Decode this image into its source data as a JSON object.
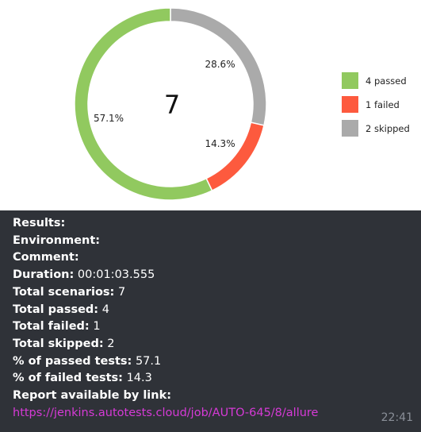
{
  "chart_data": {
    "type": "pie",
    "variant": "donut",
    "center_label": "7",
    "series": [
      {
        "name": "passed",
        "value": 4,
        "percent_label": "57.1%",
        "legend_label": "4 passed",
        "color": "#91c95f"
      },
      {
        "name": "failed",
        "value": 1,
        "percent_label": "14.3%",
        "legend_label": "1 failed",
        "color": "#fd5a3e"
      },
      {
        "name": "skipped",
        "value": 2,
        "percent_label": "28.6%",
        "legend_label": "2 skipped",
        "color": "#aaaaaa"
      }
    ],
    "legend_placement": "right"
  },
  "message": {
    "results_label": "Results:",
    "environment_label": "Environment:",
    "comment_label": "Comment:",
    "duration_label": "Duration:",
    "duration_value": "00:01:03.555",
    "total_scenarios_label": "Total scenarios:",
    "total_scenarios_value": "7",
    "total_passed_label": "Total passed:",
    "total_passed_value": "4",
    "total_failed_label": "Total failed:",
    "total_failed_value": "1",
    "total_skipped_label": "Total skipped:",
    "total_skipped_value": "2",
    "passed_pct_label": "% of passed tests:",
    "passed_pct_value": "57.1",
    "failed_pct_label": "% of failed tests:",
    "failed_pct_value": "14.3",
    "report_label": "Report available by link:",
    "report_link": "https://jenkins.autotests.cloud/job/AUTO-645/8/allure",
    "timestamp": "22:41"
  },
  "colors": {
    "chart_background": "#ffffff",
    "message_background": "#2f3238",
    "text": "#ffffff",
    "link": "#d63ad6",
    "timestamp": "#8a8f98"
  }
}
